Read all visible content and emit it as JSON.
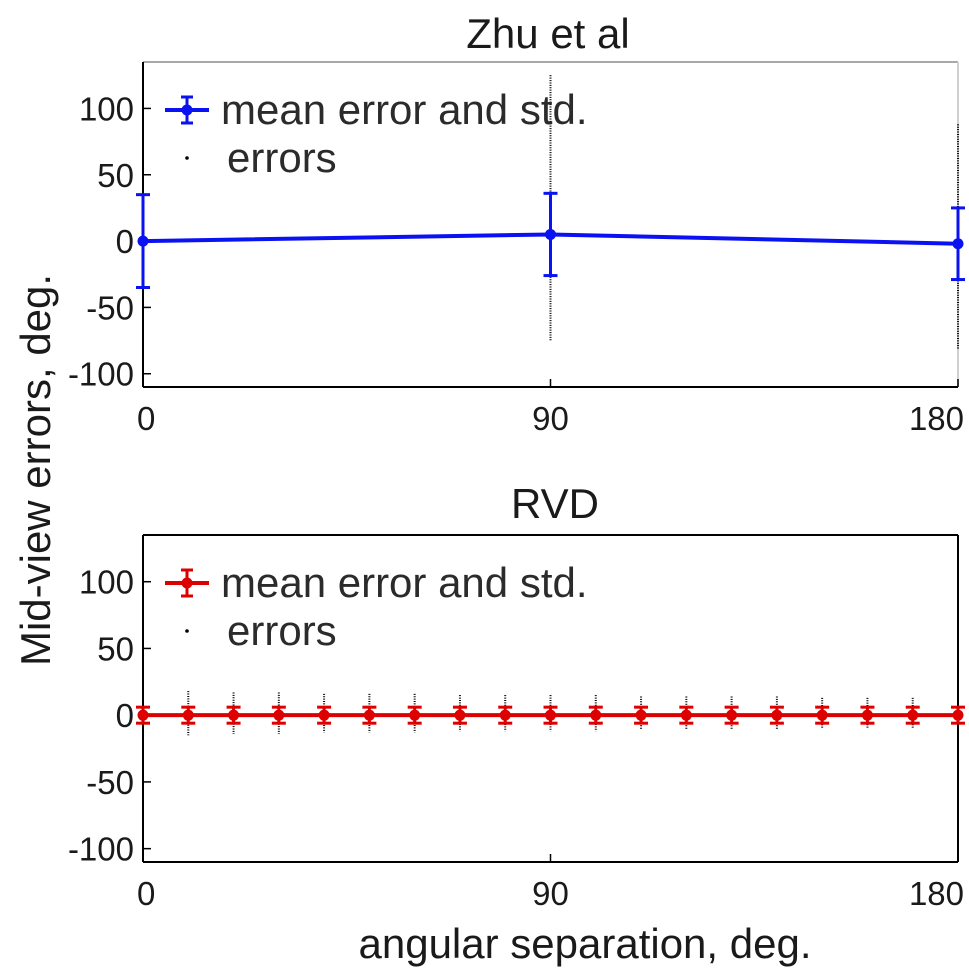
{
  "figure": {
    "ylabel": "Mid-view errors, deg.",
    "xlabel": "angular separation, deg."
  },
  "chart_data": [
    {
      "type": "line",
      "title": "Zhu et al",
      "xlabel": "angular separation, deg.",
      "ylabel": "Mid-view errors, deg.",
      "xlim": [
        0,
        180
      ],
      "ylim": [
        -110,
        135
      ],
      "xticks": [
        0,
        90,
        180
      ],
      "yticks": [
        100,
        50,
        0,
        -50,
        -100
      ],
      "grid": false,
      "legend_position": "top-left",
      "series": [
        {
          "name": "mean error and std.",
          "color": "#0a12f2",
          "x": [
            0,
            90,
            180
          ],
          "y": [
            0,
            5,
            -2
          ],
          "std": [
            35,
            31,
            27
          ]
        },
        {
          "name": "errors",
          "color": "#000000",
          "x": [
            0,
            90,
            180
          ],
          "ymin": [
            -110,
            -75,
            -82
          ],
          "ymax": [
            130,
            125,
            88
          ]
        }
      ]
    },
    {
      "type": "line",
      "title": "RVD",
      "xlabel": "angular separation, deg.",
      "ylabel": "Mid-view errors, deg.",
      "xlim": [
        0,
        180
      ],
      "ylim": [
        -110,
        135
      ],
      "xticks": [
        0,
        90,
        180
      ],
      "yticks": [
        100,
        50,
        0,
        -50,
        -100
      ],
      "grid": false,
      "legend_position": "top-left",
      "series": [
        {
          "name": "mean error and std.",
          "color": "#dd0000",
          "x": [
            0,
            10,
            20,
            30,
            40,
            50,
            60,
            70,
            80,
            90,
            100,
            110,
            120,
            130,
            140,
            150,
            160,
            170,
            180
          ],
          "y": [
            0,
            0,
            0,
            0,
            0,
            0,
            0,
            0,
            0,
            0,
            0,
            0,
            0,
            0,
            0,
            0,
            0,
            0,
            0
          ],
          "std": [
            6,
            6,
            6,
            6,
            6,
            6,
            6,
            6,
            6,
            6,
            6,
            6,
            6,
            6,
            6,
            6,
            6,
            6,
            6
          ]
        },
        {
          "name": "errors",
          "color": "#000000",
          "x": [
            0,
            10,
            20,
            30,
            40,
            50,
            60,
            70,
            80,
            90,
            100,
            110,
            120,
            130,
            140,
            150,
            160,
            170,
            180
          ],
          "ymin": [
            -15,
            -15,
            -14,
            -14,
            -13,
            -13,
            -13,
            -12,
            -12,
            -12,
            -12,
            -11,
            -11,
            -11,
            -11,
            -10,
            -10,
            -10,
            -10
          ],
          "ymax": [
            18,
            18,
            17,
            17,
            16,
            16,
            16,
            15,
            15,
            15,
            15,
            14,
            14,
            14,
            14,
            13,
            13,
            13,
            13
          ]
        }
      ]
    }
  ]
}
